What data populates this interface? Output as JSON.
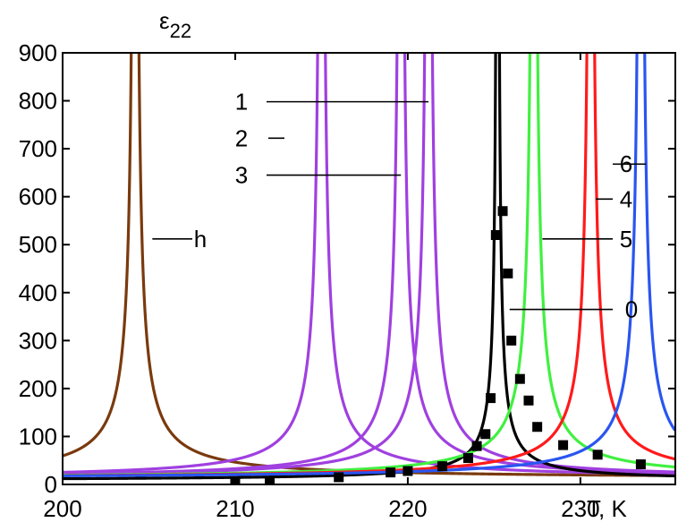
{
  "chart_data": {
    "type": "line",
    "title": "",
    "ylabel_base": "ε",
    "ylabel_sub": "22",
    "xlabel": "T, K",
    "xlim": [
      200,
      235.5
    ],
    "ylim": [
      0,
      900
    ],
    "xticks": [
      200,
      210,
      220,
      230
    ],
    "yticks": [
      0,
      100,
      200,
      300,
      400,
      500,
      600,
      700,
      800,
      900
    ],
    "series": [
      {
        "name": "h",
        "color": "#7a3a0e",
        "tc": 204.2,
        "a": 200,
        "b": 12
      },
      {
        "name": "1",
        "color": "#a040e0",
        "tc": 221.2,
        "a": 200,
        "b": 12
      },
      {
        "name": "2",
        "color": "#a040e0",
        "tc": 215.0,
        "a": 200,
        "b": 12
      },
      {
        "name": "3",
        "color": "#a040e0",
        "tc": 219.6,
        "a": 200,
        "b": 12
      },
      {
        "name": "0",
        "color": "#000000",
        "tc": 225.2,
        "a": 100,
        "b": 8
      },
      {
        "name": "5",
        "color": "#40f040",
        "tc": 227.3,
        "a": 200,
        "b": 12
      },
      {
        "name": "4",
        "color": "#ff1a1a",
        "tc": 230.6,
        "a": 200,
        "b": 12
      },
      {
        "name": "6",
        "color": "#2a55f0",
        "tc": 233.5,
        "a": 200,
        "b": 12
      }
    ],
    "markers": {
      "series": "0",
      "x": [
        210,
        212,
        216,
        219,
        220,
        222,
        223.5,
        224,
        224.5,
        224.8,
        225.1,
        225.5,
        225.8,
        226,
        226.5,
        227,
        227.5,
        229,
        231,
        233.5
      ],
      "y": [
        5,
        5,
        15,
        25,
        28,
        38,
        55,
        80,
        105,
        180,
        520,
        570,
        440,
        300,
        220,
        175,
        120,
        82,
        62,
        42
      ]
    },
    "annotations": [
      {
        "label": "h",
        "series": "h",
        "at_y": 512
      },
      {
        "label": "1",
        "series": "1",
        "at_y": 798
      },
      {
        "label": "2",
        "series": "2",
        "at_y": 722
      },
      {
        "label": "3",
        "series": "3",
        "at_y": 645
      },
      {
        "label": "6",
        "series": "6",
        "at_y": 668
      },
      {
        "label": "4",
        "series": "4",
        "at_y": 595
      },
      {
        "label": "5",
        "series": "5",
        "at_y": 512
      },
      {
        "label": "0",
        "series": "0",
        "at_y": 365
      }
    ]
  }
}
